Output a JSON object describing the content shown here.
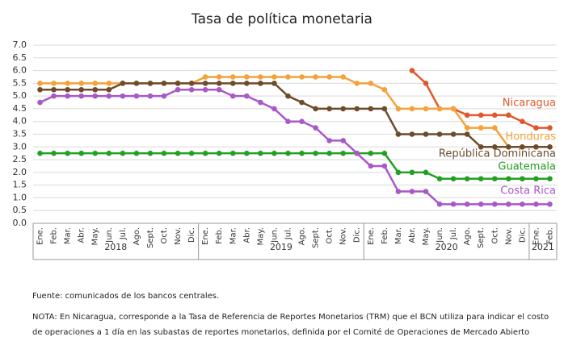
{
  "chart_data": {
    "type": "line",
    "title": "Tasa de política monetaria",
    "groups": [
      {
        "label": "2018",
        "categories": [
          "Ene.",
          "Feb.",
          "Mar.",
          "Abr.",
          "May.",
          "Jun.",
          "Jul.",
          "Ago.",
          "Sept.",
          "Oct.",
          "Nov.",
          "Dic."
        ]
      },
      {
        "label": "2019",
        "categories": [
          "Ene.",
          "Feb.",
          "Mar.",
          "Abr.",
          "May.",
          "Jun.",
          "Jul.",
          "Ago.",
          "Sept.",
          "Oct.",
          "Nov.",
          "Dic."
        ]
      },
      {
        "label": "2020",
        "categories": [
          "Ene.",
          "Feb.",
          "Mar.",
          "Abr.",
          "May.",
          "Jun.",
          "Jul.",
          "Ago.",
          "Sept.",
          "Oct.",
          "Nov.",
          "Dic."
        ]
      },
      {
        "label": "2021",
        "categories": [
          "Ene.",
          "Feb."
        ]
      }
    ],
    "series": [
      {
        "name": "Nicaragua",
        "color": "#e0582a",
        "values": [
          null,
          null,
          null,
          null,
          null,
          null,
          null,
          null,
          null,
          null,
          null,
          null,
          null,
          null,
          null,
          null,
          null,
          null,
          null,
          null,
          null,
          null,
          null,
          null,
          null,
          null,
          null,
          6.0,
          5.5,
          4.5,
          4.5,
          4.25,
          4.25,
          4.25,
          4.25,
          4.0,
          3.75,
          3.75
        ]
      },
      {
        "name": "Honduras",
        "color": "#f4a23a",
        "values": [
          5.5,
          5.5,
          5.5,
          5.5,
          5.5,
          5.5,
          5.5,
          5.5,
          5.5,
          5.5,
          5.5,
          5.5,
          5.75,
          5.75,
          5.75,
          5.75,
          5.75,
          5.75,
          5.75,
          5.75,
          5.75,
          5.75,
          5.75,
          5.5,
          5.5,
          5.25,
          4.5,
          4.5,
          4.5,
          4.5,
          4.5,
          3.75,
          3.75,
          3.75,
          3.0,
          3.0,
          3.0,
          3.0
        ]
      },
      {
        "name": "República Dominicana",
        "color": "#6e4b2a",
        "values": [
          5.25,
          5.25,
          5.25,
          5.25,
          5.25,
          5.25,
          5.5,
          5.5,
          5.5,
          5.5,
          5.5,
          5.5,
          5.5,
          5.5,
          5.5,
          5.5,
          5.5,
          5.5,
          5.0,
          4.75,
          4.5,
          4.5,
          4.5,
          4.5,
          4.5,
          4.5,
          3.5,
          3.5,
          3.5,
          3.5,
          3.5,
          3.5,
          3.0,
          3.0,
          3.0,
          3.0,
          3.0,
          3.0
        ]
      },
      {
        "name": "Guatemala",
        "color": "#22a022",
        "values": [
          2.75,
          2.75,
          2.75,
          2.75,
          2.75,
          2.75,
          2.75,
          2.75,
          2.75,
          2.75,
          2.75,
          2.75,
          2.75,
          2.75,
          2.75,
          2.75,
          2.75,
          2.75,
          2.75,
          2.75,
          2.75,
          2.75,
          2.75,
          2.75,
          2.75,
          2.75,
          2.0,
          2.0,
          2.0,
          1.75,
          1.75,
          1.75,
          1.75,
          1.75,
          1.75,
          1.75,
          1.75,
          1.75
        ]
      },
      {
        "name": "Costa Rica",
        "color": "#a957c9",
        "values": [
          4.75,
          5.0,
          5.0,
          5.0,
          5.0,
          5.0,
          5.0,
          5.0,
          5.0,
          5.0,
          5.25,
          5.25,
          5.25,
          5.25,
          5.0,
          5.0,
          4.75,
          4.5,
          4.0,
          4.0,
          3.75,
          3.25,
          3.25,
          2.75,
          2.25,
          2.25,
          1.25,
          1.25,
          1.25,
          0.75,
          0.75,
          0.75,
          0.75,
          0.75,
          0.75,
          0.75,
          0.75,
          0.75
        ]
      }
    ],
    "ylim": [
      0,
      7
    ],
    "yticks": [
      {
        "value": 0,
        "label": "0.0"
      },
      0.5,
      {
        "value": 1,
        "label": "1.0"
      },
      1.5,
      {
        "value": 2,
        "label": "2.0"
      },
      2.5,
      {
        "value": 3,
        "label": "3.0"
      },
      3.5,
      {
        "value": 4,
        "label": "4.0"
      },
      4.5,
      {
        "value": 5,
        "label": "5.0"
      },
      5.5,
      {
        "value": 6,
        "label": "6.0"
      },
      6.5,
      {
        "value": 7,
        "label": "7.0"
      }
    ],
    "grid": true,
    "source": "Fuente: comunicados de los bancos centrales.",
    "note": "NOTA: En Nicaragua, corresponde a la Tasa de Referencia de Reportes Monetarios (TRM) que el BCN utiliza para indicar el costo de operaciones a 1 día en las subastas de reportes monetarios, definida por el Comité de Operaciones de Mercado Abierto"
  }
}
